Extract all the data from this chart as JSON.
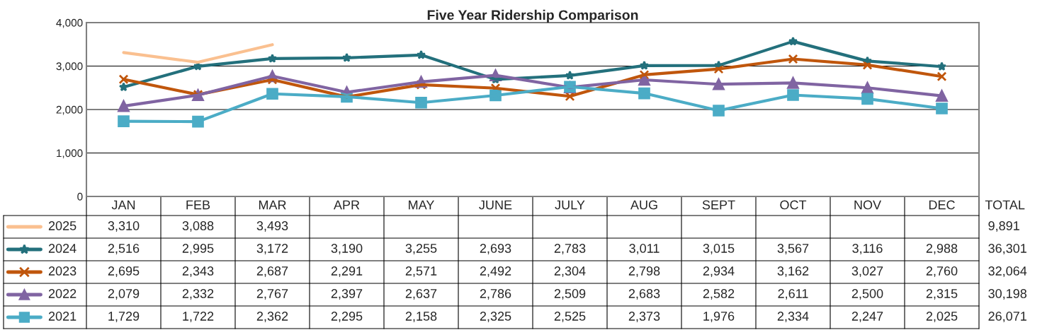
{
  "chart_data": {
    "type": "line",
    "title": "Five Year Ridership Comparison",
    "categories": [
      "JAN",
      "FEB",
      "MAR",
      "APR",
      "MAY",
      "JUNE",
      "JULY",
      "AUG",
      "SEPT",
      "OCT",
      "NOV",
      "DEC"
    ],
    "series": [
      {
        "name": "2025",
        "color": "#fac090",
        "marker": "none",
        "values": [
          3310,
          3088,
          3493,
          null,
          null,
          null,
          null,
          null,
          null,
          null,
          null,
          null
        ],
        "value_labels": [
          "3,310",
          "3,088",
          "3,493",
          null,
          null,
          null,
          null,
          null,
          null,
          null,
          null,
          null
        ]
      },
      {
        "name": "2024",
        "color": "#23707c",
        "marker": "star",
        "values": [
          2516,
          2995,
          3172,
          3190,
          3255,
          2693,
          2783,
          3011,
          3015,
          3567,
          3116,
          2988
        ],
        "value_labels": [
          "2,516",
          "2,995",
          "3,172",
          "3,190",
          "3,255",
          "2,693",
          "2,783",
          "3,011",
          "3,015",
          "3,567",
          "3,116",
          "2,988"
        ]
      },
      {
        "name": "2023",
        "color": "#c0560c",
        "marker": "cross",
        "values": [
          2695,
          2343,
          2687,
          2291,
          2571,
          2492,
          2304,
          2798,
          2934,
          3162,
          3027,
          2760
        ],
        "value_labels": [
          "2,695",
          "2,343",
          "2,687",
          "2,291",
          "2,571",
          "2,492",
          "2,304",
          "2,798",
          "2,934",
          "3,162",
          "3,027",
          "2,760"
        ]
      },
      {
        "name": "2022",
        "color": "#8064a2",
        "marker": "triangle",
        "values": [
          2079,
          2332,
          2767,
          2397,
          2637,
          2786,
          2509,
          2683,
          2582,
          2611,
          2500,
          2315
        ],
        "value_labels": [
          "2,079",
          "2,332",
          "2,767",
          "2,397",
          "2,637",
          "2,786",
          "2,509",
          "2,683",
          "2,582",
          "2,611",
          "2,500",
          "2,315"
        ]
      },
      {
        "name": "2021",
        "color": "#4bacc6",
        "marker": "square",
        "values": [
          1729,
          1722,
          2362,
          2295,
          2158,
          2325,
          2525,
          2373,
          1976,
          2334,
          2247,
          2025
        ],
        "value_labels": [
          "1,729",
          "1,722",
          "2,362",
          "2,295",
          "2,158",
          "2,325",
          "2,525",
          "2,373",
          "1,976",
          "2,334",
          "2,247",
          "2,025"
        ]
      }
    ],
    "legend": "bottom left",
    "ylim": [
      0,
      4000
    ],
    "yticks": [
      {
        "value": 0,
        "label": "0"
      },
      {
        "value": 1000,
        "label": "1,000"
      },
      {
        "value": 2000,
        "label": "2,000"
      },
      {
        "value": 3000,
        "label": "3,000"
      },
      {
        "value": 4000,
        "label": "4,000"
      }
    ],
    "grid": "y",
    "annotations": [
      "TOTAL",
      "9,891",
      "36,301",
      "32,064",
      "30,198",
      "26,071"
    ]
  }
}
